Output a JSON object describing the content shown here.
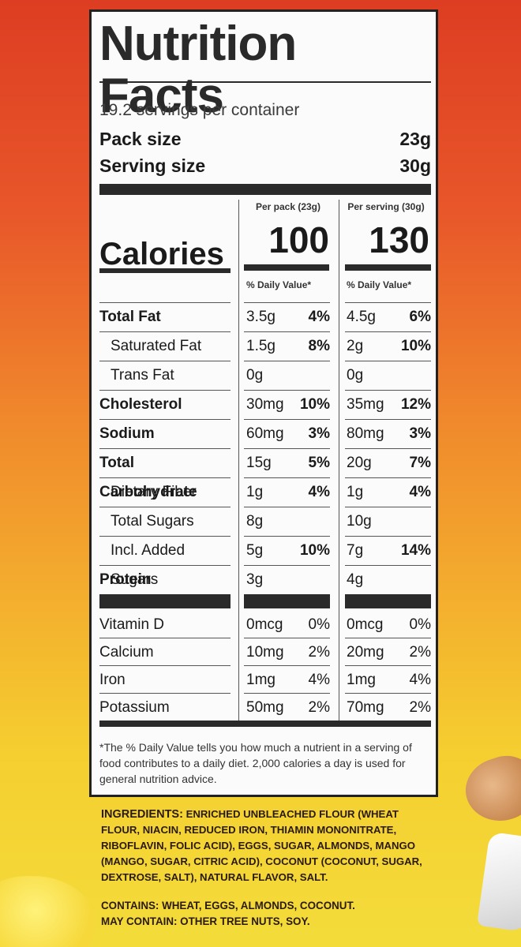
{
  "label": {
    "title": "Nutrition Facts",
    "servings_per_container": "19.2 servings per container",
    "pack_size": {
      "label": "Pack size",
      "value": "23g"
    },
    "serving_size": {
      "label": "Serving size",
      "value": "30g"
    },
    "columns": [
      {
        "header": "Per pack (23g)",
        "calories": "100",
        "dv_header": "% Daily Value*"
      },
      {
        "header": "Per serving (30g)",
        "calories": "130",
        "dv_header": "% Daily Value*"
      }
    ],
    "calories_label": "Calories",
    "nutrients": [
      {
        "name": "Total Fat",
        "bold": true,
        "indent": false,
        "pack": {
          "amount": "3.5g",
          "dv": "4%"
        },
        "serving": {
          "amount": "4.5g",
          "dv": "6%"
        }
      },
      {
        "name": "Saturated Fat",
        "bold": false,
        "indent": true,
        "pack": {
          "amount": "1.5g",
          "dv": "8%"
        },
        "serving": {
          "amount": "2g",
          "dv": "10%"
        }
      },
      {
        "name": "Trans Fat",
        "bold": false,
        "indent": true,
        "pack": {
          "amount": "0g",
          "dv": ""
        },
        "serving": {
          "amount": "0g",
          "dv": ""
        }
      },
      {
        "name": "Cholesterol",
        "bold": true,
        "indent": false,
        "pack": {
          "amount": "30mg",
          "dv": "10%"
        },
        "serving": {
          "amount": "35mg",
          "dv": "12%"
        }
      },
      {
        "name": "Sodium",
        "bold": true,
        "indent": false,
        "pack": {
          "amount": "60mg",
          "dv": "3%"
        },
        "serving": {
          "amount": "80mg",
          "dv": "3%"
        }
      },
      {
        "name": "Total Carbohydrate",
        "bold": true,
        "indent": false,
        "pack": {
          "amount": "15g",
          "dv": "5%"
        },
        "serving": {
          "amount": "20g",
          "dv": "7%"
        }
      },
      {
        "name": "Dietary Fiber",
        "bold": false,
        "indent": true,
        "pack": {
          "amount": "1g",
          "dv": "4%"
        },
        "serving": {
          "amount": "1g",
          "dv": "4%"
        }
      },
      {
        "name": "Total Sugars",
        "bold": false,
        "indent": true,
        "pack": {
          "amount": "8g",
          "dv": ""
        },
        "serving": {
          "amount": "10g",
          "dv": ""
        }
      },
      {
        "name": "Incl. Added Sugars",
        "bold": false,
        "indent": true,
        "pack": {
          "amount": "5g",
          "dv": "10%"
        },
        "serving": {
          "amount": "7g",
          "dv": "14%"
        }
      },
      {
        "name": "Protein",
        "bold": true,
        "indent": false,
        "pack": {
          "amount": "3g",
          "dv": ""
        },
        "serving": {
          "amount": "4g",
          "dv": ""
        }
      }
    ],
    "vitamins": [
      {
        "name": "Vitamin D",
        "pack": {
          "amount": "0mcg",
          "dv": "0%"
        },
        "serving": {
          "amount": "0mcg",
          "dv": "0%"
        }
      },
      {
        "name": "Calcium",
        "pack": {
          "amount": "10mg",
          "dv": "2%"
        },
        "serving": {
          "amount": "20mg",
          "dv": "2%"
        }
      },
      {
        "name": "Iron",
        "pack": {
          "amount": "1mg",
          "dv": "4%"
        },
        "serving": {
          "amount": "1mg",
          "dv": "4%"
        }
      },
      {
        "name": "Potassium",
        "pack": {
          "amount": "50mg",
          "dv": "2%"
        },
        "serving": {
          "amount": "70mg",
          "dv": "2%"
        }
      }
    ],
    "footnote": "*The % Daily Value tells you how much a nutrient in a serving of food contributes to a daily diet. 2,000 calories a day is used for general nutrition advice."
  },
  "ingredients": {
    "heading": "INGREDIENTS:",
    "text": "ENRICHED UNBLEACHED FLOUR (WHEAT FLOUR, NIACIN, REDUCED IRON, THIAMIN MONONITRATE, RIBOFLAVIN, FOLIC ACID), EGGS, SUGAR, ALMONDS, MANGO (MANGO, SUGAR, CITRIC ACID), COCONUT (COCONUT, SUGAR, DEXTROSE, SALT), NATURAL FLAVOR, SALT."
  },
  "allergens": {
    "contains": "CONTAINS: WHEAT, EGGS, ALMONDS, COCONUT.",
    "may_contain": "MAY CONTAIN: OTHER TREE NUTS, SOY."
  },
  "colors": {
    "panel": "#fbfbfb",
    "ink": "#2a2a2a",
    "background_top": "#dd3d22",
    "background_bottom": "#f3dc3a"
  }
}
